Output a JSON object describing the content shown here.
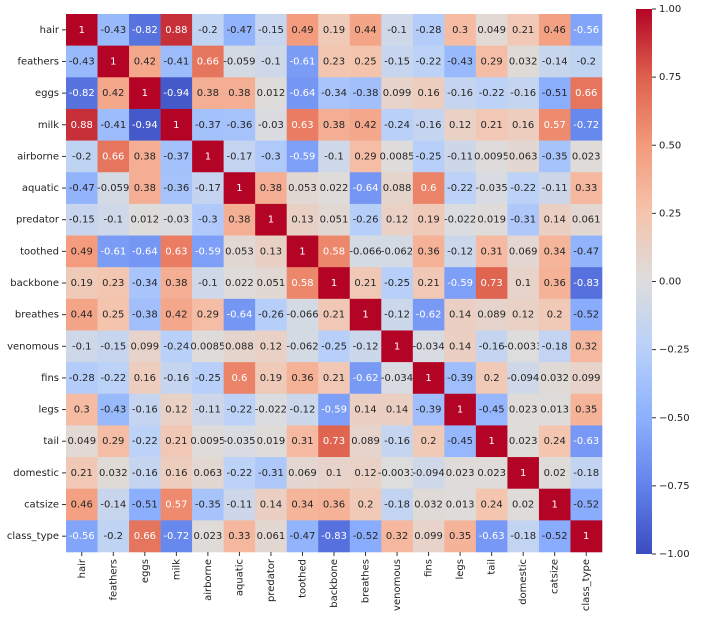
{
  "chart_data": {
    "type": "heatmap",
    "x_categories": [
      "hair",
      "feathers",
      "eggs",
      "milk",
      "airborne",
      "aquatic",
      "predator",
      "toothed",
      "backbone",
      "breathes",
      "venomous",
      "fins",
      "legs",
      "tail",
      "domestic",
      "catsize",
      "class_type"
    ],
    "y_categories": [
      "hair",
      "feathers",
      "eggs",
      "milk",
      "airborne",
      "aquatic",
      "predator",
      "toothed",
      "backbone",
      "breathes",
      "venomous",
      "fins",
      "legs",
      "tail",
      "domestic",
      "catsize",
      "class_type"
    ],
    "values": [
      [
        1,
        -0.43,
        -0.82,
        0.88,
        -0.2,
        -0.47,
        -0.15,
        0.49,
        0.19,
        0.44,
        -0.1,
        -0.28,
        0.3,
        0.049,
        0.21,
        0.46,
        -0.56
      ],
      [
        -0.43,
        1,
        0.42,
        -0.41,
        0.66,
        -0.059,
        -0.1,
        -0.61,
        0.23,
        0.25,
        -0.15,
        -0.22,
        -0.43,
        0.29,
        0.032,
        -0.14,
        -0.2
      ],
      [
        -0.82,
        0.42,
        1,
        -0.94,
        0.38,
        0.38,
        0.012,
        -0.64,
        -0.34,
        -0.38,
        0.099,
        0.16,
        -0.16,
        -0.22,
        -0.16,
        -0.51,
        0.66
      ],
      [
        0.88,
        -0.41,
        -0.94,
        1,
        -0.37,
        -0.36,
        -0.03,
        0.63,
        0.38,
        0.42,
        -0.24,
        -0.16,
        0.12,
        0.21,
        0.16,
        0.57,
        -0.72
      ],
      [
        -0.2,
        0.66,
        0.38,
        -0.37,
        1,
        -0.17,
        -0.3,
        -0.59,
        -0.1,
        0.29,
        0.0085,
        -0.25,
        -0.11,
        0.0095,
        0.063,
        -0.35,
        0.023
      ],
      [
        -0.47,
        -0.059,
        0.38,
        -0.36,
        -0.17,
        1,
        0.38,
        0.053,
        0.022,
        -0.64,
        0.088,
        0.6,
        -0.22,
        -0.035,
        -0.22,
        -0.11,
        0.33
      ],
      [
        -0.15,
        -0.1,
        0.012,
        -0.03,
        -0.3,
        0.38,
        1,
        0.13,
        0.051,
        -0.26,
        0.12,
        0.19,
        -0.022,
        0.019,
        -0.31,
        0.14,
        0.061
      ],
      [
        0.49,
        -0.61,
        -0.64,
        0.63,
        -0.59,
        0.053,
        0.13,
        1,
        0.58,
        -0.066,
        -0.062,
        0.36,
        -0.12,
        0.31,
        0.069,
        0.34,
        -0.47
      ],
      [
        0.19,
        0.23,
        -0.34,
        0.38,
        -0.1,
        0.022,
        0.051,
        0.58,
        1,
        0.21,
        -0.25,
        0.21,
        -0.59,
        0.73,
        0.1,
        0.36,
        -0.83
      ],
      [
        0.44,
        0.25,
        -0.38,
        0.42,
        0.29,
        -0.64,
        -0.26,
        -0.066,
        0.21,
        1,
        -0.12,
        -0.62,
        0.14,
        0.089,
        0.12,
        0.2,
        -0.52
      ],
      [
        -0.1,
        -0.15,
        0.099,
        -0.24,
        0.0085,
        0.088,
        0.12,
        -0.062,
        -0.25,
        -0.12,
        1,
        -0.034,
        0.14,
        -0.16,
        -0.0033,
        -0.18,
        0.32
      ],
      [
        -0.28,
        -0.22,
        0.16,
        -0.16,
        -0.25,
        0.6,
        0.19,
        0.36,
        0.21,
        -0.62,
        -0.034,
        1,
        -0.39,
        0.2,
        -0.094,
        0.032,
        0.099
      ],
      [
        0.3,
        -0.43,
        -0.16,
        0.12,
        -0.11,
        -0.22,
        -0.022,
        -0.12,
        -0.59,
        0.14,
        0.14,
        -0.39,
        1,
        -0.45,
        0.023,
        0.013,
        0.35
      ],
      [
        0.049,
        0.29,
        -0.22,
        0.21,
        0.0095,
        -0.035,
        0.019,
        0.31,
        0.73,
        0.089,
        -0.16,
        0.2,
        -0.45,
        1,
        0.023,
        0.24,
        -0.63
      ],
      [
        0.21,
        0.032,
        -0.16,
        0.16,
        0.063,
        -0.22,
        -0.31,
        0.069,
        0.1,
        0.12,
        -0.0033,
        -0.094,
        0.023,
        0.023,
        1,
        0.02,
        -0.18
      ],
      [
        0.46,
        -0.14,
        -0.51,
        0.57,
        -0.35,
        -0.11,
        0.14,
        0.34,
        0.36,
        0.2,
        -0.18,
        0.032,
        0.013,
        0.24,
        0.02,
        1,
        -0.52
      ],
      [
        -0.56,
        -0.2,
        0.66,
        -0.72,
        0.023,
        0.33,
        0.061,
        -0.47,
        -0.83,
        -0.52,
        0.32,
        0.099,
        0.35,
        -0.63,
        -0.18,
        -0.52,
        1
      ]
    ],
    "colormap": "coolwarm",
    "clim": [
      -1,
      1
    ],
    "cticks": [
      {
        "value": -1,
        "label": "−1.00"
      },
      {
        "value": -0.75,
        "label": "−0.75"
      },
      {
        "value": -0.5,
        "label": "−0.50"
      },
      {
        "value": -0.25,
        "label": "−0.25"
      },
      {
        "value": 0,
        "label": "0.00"
      },
      {
        "value": 0.25,
        "label": "0.25"
      },
      {
        "value": 0.5,
        "label": "0.50"
      },
      {
        "value": 0.75,
        "label": "0.75"
      },
      {
        "value": 1,
        "label": "1.00"
      }
    ]
  }
}
